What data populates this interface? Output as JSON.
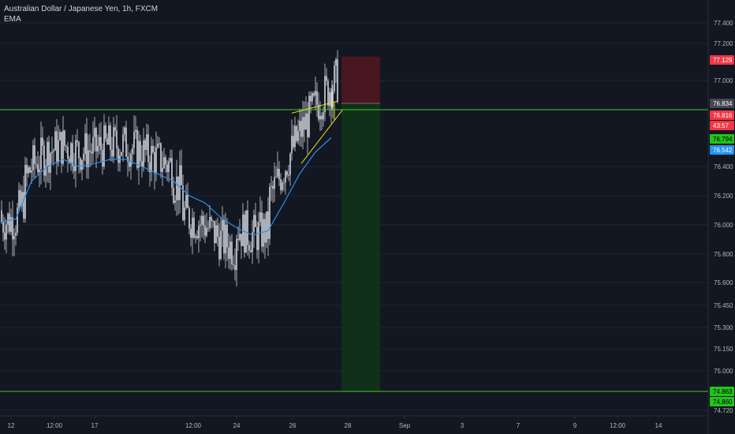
{
  "header": {
    "title": "Australian Dollar / Japanese Yen, 1h, FXCM",
    "indicator": "EMA"
  },
  "colors": {
    "background": "#131722",
    "grid": "#1f2430",
    "axis_text": "#b2b5be",
    "candle": "#d1d4dc",
    "ema": "#2b8fe8",
    "wedge": "#e6e31a",
    "level_line": "#3fcc1f",
    "stop_zone": "#4a1620",
    "target_zone": "#10311a",
    "tag_red": "#f23645",
    "tag_green": "#22c41a",
    "tag_blue": "#2196f3",
    "tag_gray": "#434651"
  },
  "price_axis": {
    "ticks": [
      "77.400",
      "77.200",
      "77.000",
      "76.400",
      "76.200",
      "76.000",
      "75.800",
      "75.600",
      "75.450",
      "75.300",
      "75.150",
      "75.000",
      "74.720"
    ],
    "tags": [
      {
        "label": "77.129",
        "style": "red"
      },
      {
        "label": "76.834",
        "style": "gray"
      },
      {
        "label": "76.816",
        "style": "red"
      },
      {
        "label": "43:57",
        "style": "red"
      },
      {
        "label": "76.794",
        "style": "green"
      },
      {
        "label": "76.542",
        "style": "blue"
      },
      {
        "label": "74.863",
        "style": "green"
      },
      {
        "label": "74.860",
        "style": "green"
      }
    ]
  },
  "time_axis": {
    "labels": [
      "12",
      "12:00",
      "17",
      "12:00",
      "24",
      "26",
      "28",
      "Sep",
      "3",
      "7",
      "9",
      "12:00",
      "14"
    ]
  },
  "chart_data": {
    "type": "candlestick",
    "symbol": "Australian Dollar / Japanese Yen, 1h, FXCM",
    "price_range": [
      74.72,
      77.4
    ],
    "levels": [
      76.794,
      74.863
    ],
    "position": {
      "entry": 76.834,
      "stop": 77.129,
      "target": 74.863
    },
    "ema": [
      [
        0,
        76.02
      ],
      [
        20,
        76.04
      ],
      [
        40,
        76.3
      ],
      [
        60,
        76.4
      ],
      [
        80,
        76.45
      ],
      [
        100,
        76.4
      ],
      [
        120,
        76.42
      ],
      [
        140,
        76.45
      ],
      [
        160,
        76.45
      ],
      [
        180,
        76.4
      ],
      [
        200,
        76.35
      ],
      [
        220,
        76.3
      ],
      [
        240,
        76.2
      ],
      [
        260,
        76.15
      ],
      [
        280,
        76.05
      ],
      [
        300,
        75.98
      ],
      [
        320,
        75.93
      ],
      [
        340,
        75.96
      ],
      [
        360,
        76.15
      ],
      [
        380,
        76.35
      ],
      [
        400,
        76.5
      ],
      [
        420,
        76.6
      ]
    ],
    "wedge": {
      "upper": [
        [
          370,
          76.77
        ],
        [
          428,
          76.85
        ]
      ],
      "lower": [
        [
          382,
          76.42
        ],
        [
          434,
          76.79
        ]
      ]
    }
  }
}
